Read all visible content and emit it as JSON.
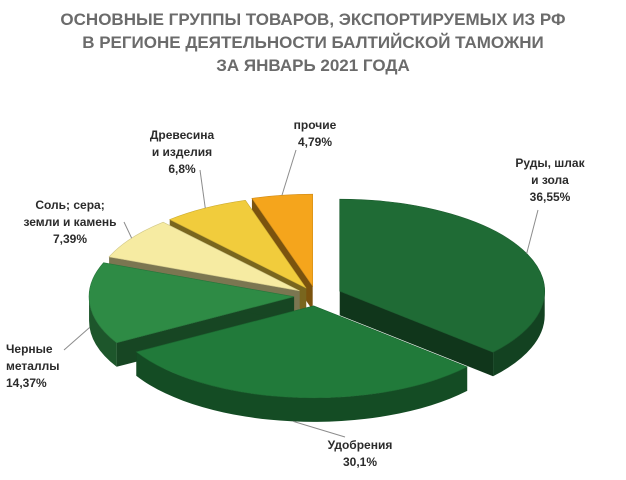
{
  "title_lines": [
    "ОСНОВНЫЕ ГРУППЫ ТОВАРОВ, ЭКСПОРТИРУЕМЫХ ИЗ РФ",
    "В РЕГИОНЕ ДЕЯТЕЛЬНОСТИ БАЛТИЙСКОЙ ТАМОЖНИ",
    "ЗА ЯНВАРЬ 2021 ГОДА"
  ],
  "chart_data": {
    "type": "pie",
    "title": "ОСНОВНЫЕ ГРУППЫ ТОВАРОВ, ЭКСПОРТИРУЕМЫХ ИЗ РФ В РЕГИОНЕ ДЕЯТЕЛЬНОСТИ БАЛТИЙСКОЙ ТАМОЖНИ ЗА ЯНВАРЬ 2021 ГОДА",
    "style": "3d-exploded",
    "slices": [
      {
        "label_lines": [
          "Руды, шлак",
          "и зола"
        ],
        "value": 36.55,
        "value_label": "36,55%",
        "color": "#1f6b35"
      },
      {
        "label_lines": [
          "Удобрения"
        ],
        "value": 30.1,
        "value_label": "30,1%",
        "color": "#217a3a"
      },
      {
        "label_lines": [
          "Черные",
          "металлы"
        ],
        "value": 14.37,
        "value_label": "14,37%",
        "color": "#2e8b45"
      },
      {
        "label_lines": [
          "Соль; сера;",
          "земли и камень"
        ],
        "value": 7.39,
        "value_label": "7,39%",
        "color": "#f6eba2"
      },
      {
        "label_lines": [
          "Древесина",
          "и изделия"
        ],
        "value": 6.8,
        "value_label": "6,8%",
        "color": "#f1cc3c"
      },
      {
        "label_lines": [
          "прочие"
        ],
        "value": 4.79,
        "value_label": "4,79%",
        "color": "#f5a51c"
      }
    ]
  }
}
